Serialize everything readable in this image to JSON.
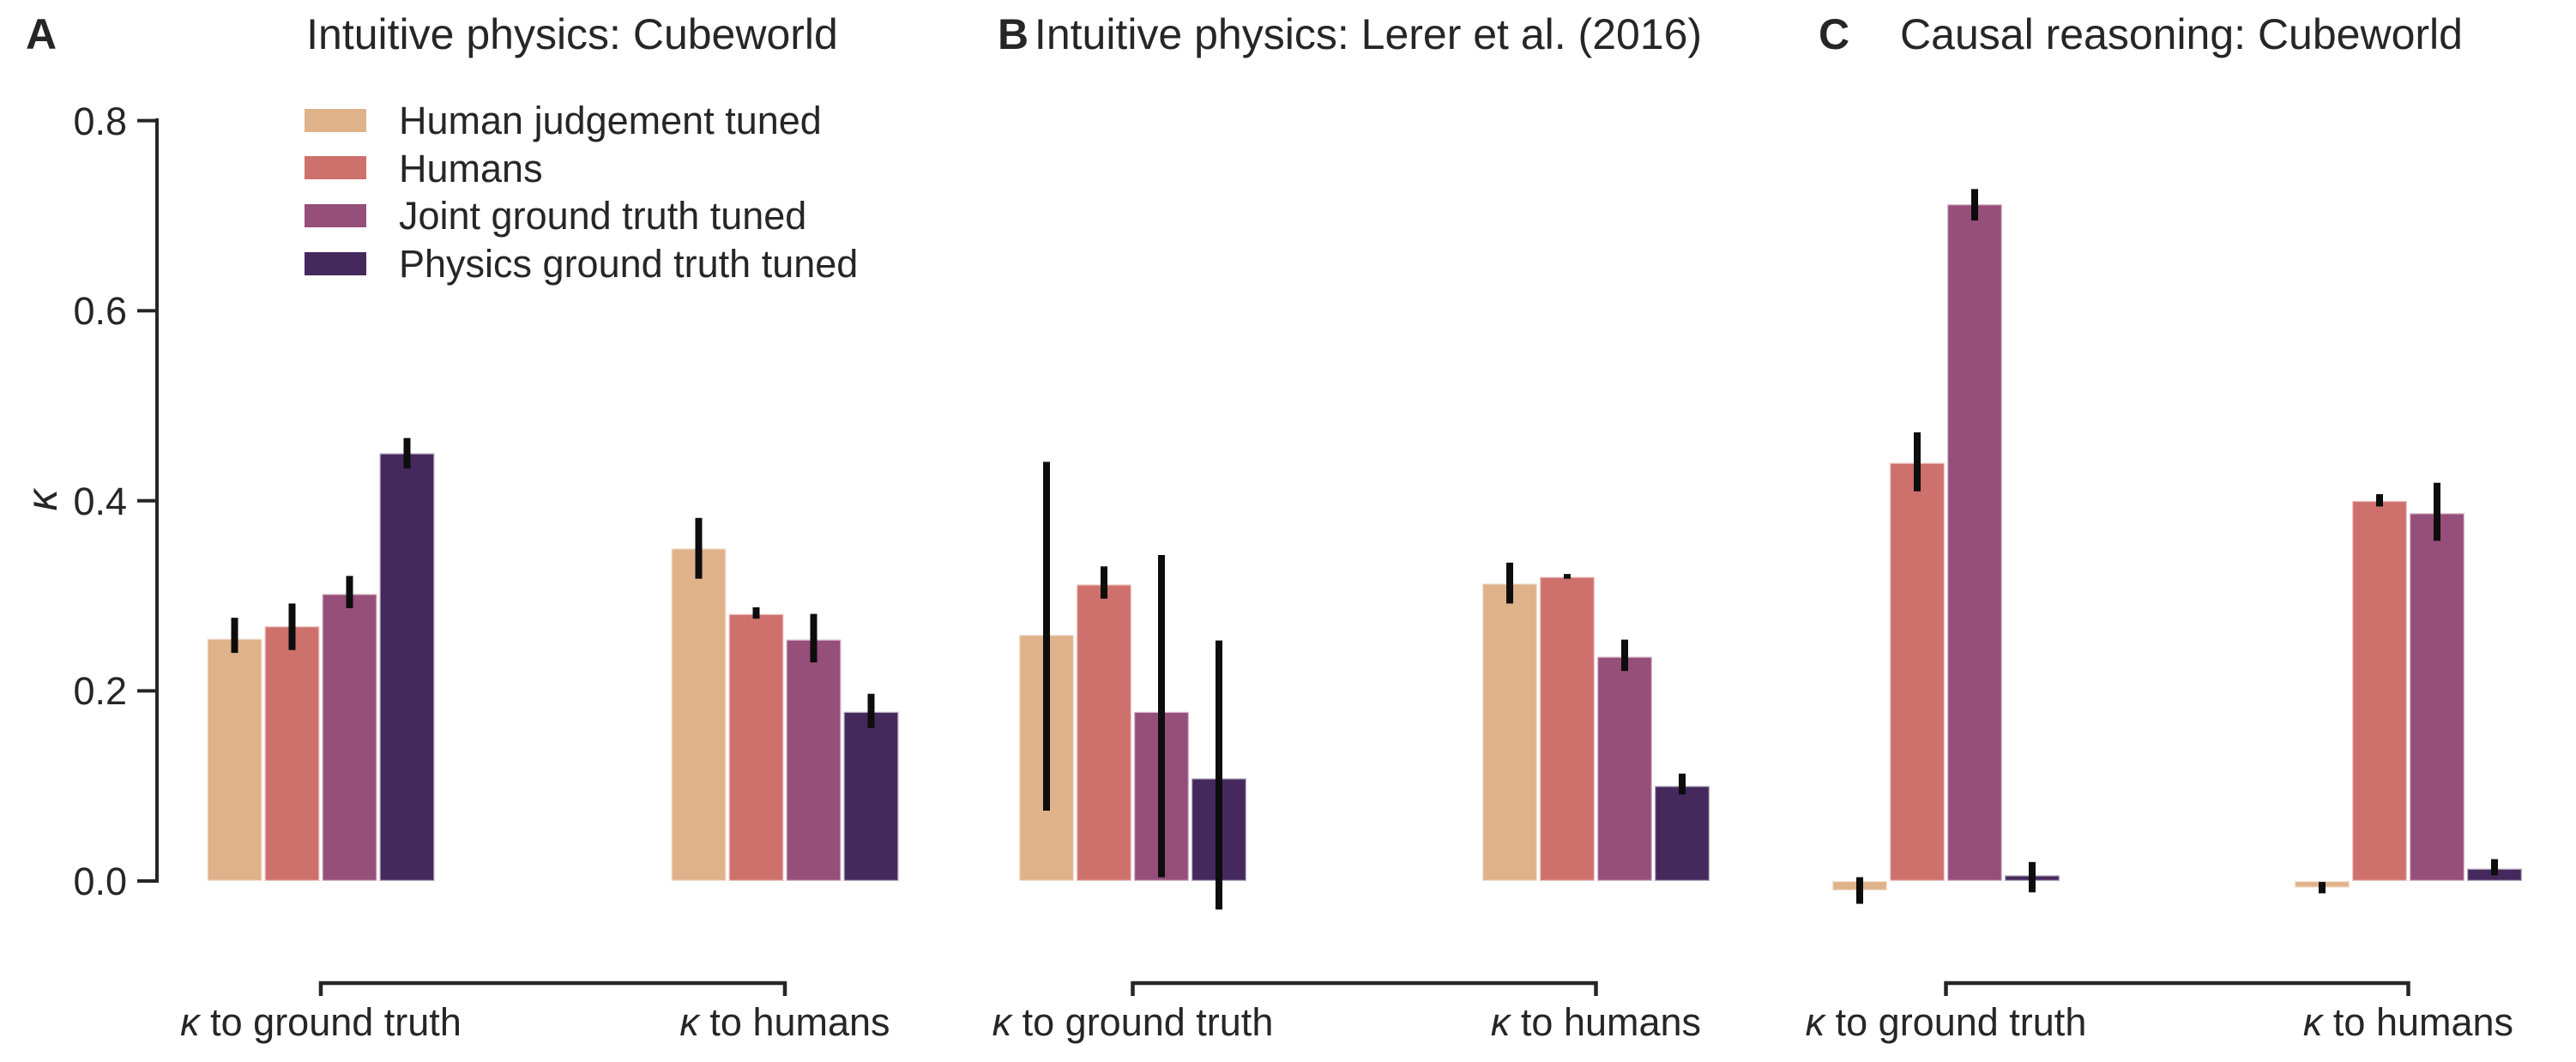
{
  "figure": {
    "background": "#ffffff",
    "text_color": "#262626",
    "axis_color": "#262626",
    "error_bar_color": "#0d0d0d",
    "bracket_color": "#262626",
    "bar_edge_color": "#ffffff"
  },
  "chart_data": {
    "type": "bar",
    "ylabel": "κ",
    "kappa_symbol": "κ",
    "ylim": [
      -0.05,
      0.8
    ],
    "yticks": [
      0.0,
      0.2,
      0.4,
      0.6,
      0.8
    ],
    "ytick_labels": [
      "0.0",
      "0.2",
      "0.4",
      "0.6",
      "0.8"
    ],
    "grid": false,
    "legend_position": "upper-left-panel-A",
    "categories": [
      "κ to ground truth",
      "κ to humans"
    ],
    "category_suffixes": [
      " to ground truth",
      " to humans"
    ],
    "series": [
      {
        "name": "Human judgement tuned",
        "color": "#DFB28A"
      },
      {
        "name": "Humans",
        "color": "#CE706B"
      },
      {
        "name": "Joint ground truth tuned",
        "color": "#964E7A"
      },
      {
        "name": "Physics ground truth tuned",
        "color": "#45285C"
      }
    ],
    "panels": [
      {
        "letter": "A",
        "title": "Intuitive physics: Cubeworld",
        "groups": [
          {
            "category": "κ to ground truth",
            "values": [
              0.255,
              0.268,
              0.302,
              0.45
            ],
            "err_lo": [
              0.24,
              0.243,
              0.287,
              0.434
            ],
            "err_hi": [
              0.277,
              0.292,
              0.321,
              0.466
            ]
          },
          {
            "category": "κ to humans",
            "values": [
              0.35,
              0.281,
              0.254,
              0.178
            ],
            "err_lo": [
              0.318,
              0.276,
              0.23,
              0.161
            ],
            "err_hi": [
              0.382,
              0.288,
              0.281,
              0.197
            ]
          }
        ]
      },
      {
        "letter": "B",
        "title": "Intuitive physics: Lerer et al. (2016)",
        "groups": [
          {
            "category": "κ to ground truth",
            "values": [
              0.259,
              0.312,
              0.178,
              0.108
            ],
            "err_lo": [
              0.074,
              0.297,
              0.004,
              -0.03
            ],
            "err_hi": [
              0.441,
              0.331,
              0.343,
              0.253
            ]
          },
          {
            "category": "κ to humans",
            "values": [
              0.313,
              0.32,
              0.236,
              0.1
            ],
            "err_lo": [
              0.292,
              0.318,
              0.221,
              0.091
            ],
            "err_hi": [
              0.335,
              0.323,
              0.254,
              0.113
            ]
          }
        ]
      },
      {
        "letter": "C",
        "title": "Causal reasoning: Cubeworld",
        "groups": [
          {
            "category": "κ to ground truth",
            "values": [
              -0.01,
              0.44,
              0.712,
              0.006
            ],
            "err_lo": [
              -0.024,
              0.41,
              0.695,
              -0.012
            ],
            "err_hi": [
              0.004,
              0.472,
              0.728,
              0.02
            ]
          },
          {
            "category": "κ to humans",
            "values": [
              -0.007,
              0.4,
              0.387,
              0.013
            ],
            "err_lo": [
              -0.013,
              0.394,
              0.358,
              0.006
            ],
            "err_hi": [
              -0.001,
              0.407,
              0.419,
              0.023
            ]
          }
        ]
      }
    ]
  }
}
